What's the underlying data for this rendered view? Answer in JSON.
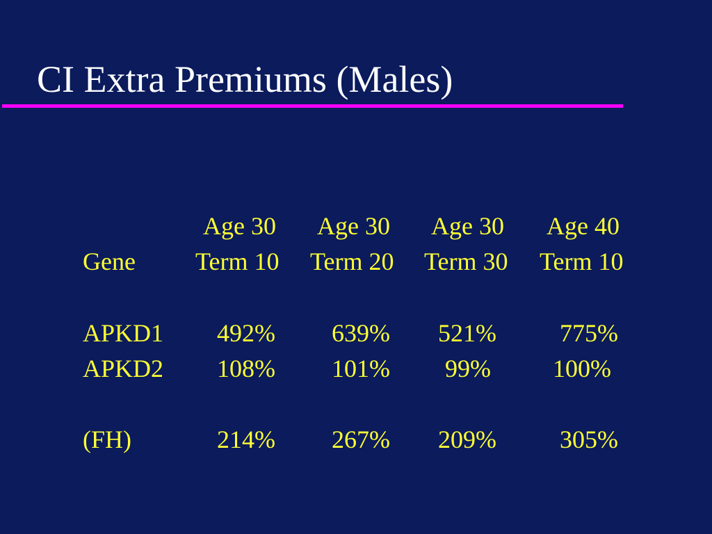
{
  "slide": {
    "title": "CI Extra Premiums (Males)",
    "title_color": "#ffffff",
    "rule_color": "#ff00ff",
    "text_color": "#ffff33",
    "background_color": "#0b1b5c"
  },
  "table": {
    "header_age": [
      "Age 30",
      "Age 30",
      "Age 30",
      "Age 40"
    ],
    "header_gene": "Gene",
    "header_term": [
      "Term 10",
      "Term 20",
      "Term 30",
      "Term 10"
    ],
    "rows": [
      {
        "gene": "APKD1",
        "values": [
          "492%",
          "639%",
          "521%",
          "775%"
        ]
      },
      {
        "gene": "APKD2",
        "values": [
          "108%",
          "101%",
          "99%",
          "100%"
        ]
      },
      {
        "gene": "(FH)",
        "values": [
          "214%",
          "267%",
          "209%",
          "305%"
        ]
      }
    ]
  }
}
